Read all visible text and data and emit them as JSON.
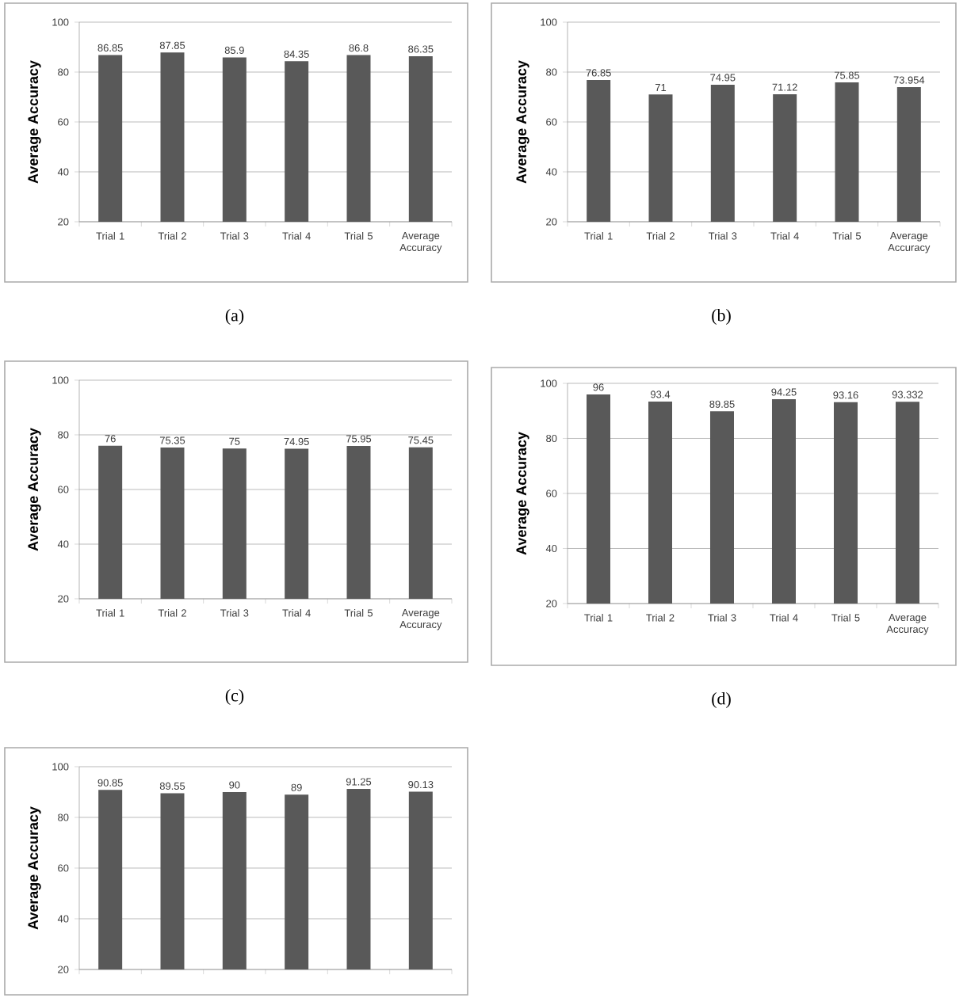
{
  "chart_data": [
    {
      "type": "bar",
      "categories": [
        "Trial 1",
        "Trial 2",
        "Trial 3",
        "Trial 4",
        "Trial 5",
        "Average Accuracy"
      ],
      "values": [
        86.85,
        87.85,
        85.9,
        84.35,
        86.8,
        86.35
      ],
      "color": "#595959",
      "ylabel": "Average Accuracy",
      "ylim": [
        20,
        100
      ],
      "yticks": [
        20,
        40,
        60,
        80,
        100
      ],
      "grid": "y",
      "data_labels": true,
      "annotations": [
        "(a)"
      ]
    },
    {
      "type": "bar",
      "categories": [
        "Trial 1",
        "Trial 2",
        "Trial 3",
        "Trial 4",
        "Trial 5",
        "Average Accuracy"
      ],
      "values": [
        76.85,
        71,
        74.95,
        71.12,
        75.85,
        73.954
      ],
      "color": "#595959",
      "ylabel": "Average Accuracy",
      "ylim": [
        20,
        100
      ],
      "yticks": [
        20,
        40,
        60,
        80,
        100
      ],
      "grid": "y",
      "data_labels": true,
      "annotations": [
        "(b)"
      ]
    },
    {
      "type": "bar",
      "categories": [
        "Trial 1",
        "Trial 2",
        "Trial 3",
        "Trial 4",
        "Trial 5",
        "Average Accuracy"
      ],
      "values": [
        76,
        75.35,
        75,
        74.95,
        75.95,
        75.45
      ],
      "color": "#595959",
      "ylabel": "Average Accuracy",
      "ylim": [
        20,
        100
      ],
      "yticks": [
        20,
        40,
        60,
        80,
        100
      ],
      "grid": "y",
      "data_labels": true,
      "annotations": [
        "(c)"
      ]
    },
    {
      "type": "bar",
      "categories": [
        "Trial 1",
        "Trial 2",
        "Trial 3",
        "Trial 4",
        "Trial 5",
        "Average Accuracy"
      ],
      "values": [
        96,
        93.4,
        89.85,
        94.25,
        93.16,
        93.332
      ],
      "color": "#595959",
      "ylabel": "Average Accuracy",
      "ylim": [
        20,
        100
      ],
      "yticks": [
        20,
        40,
        60,
        80,
        100
      ],
      "grid": "y",
      "data_labels": true,
      "annotations": [
        "(d)"
      ]
    },
    {
      "type": "bar",
      "categories": [
        null,
        null,
        null,
        null,
        null,
        null
      ],
      "values": [
        90.85,
        89.55,
        90,
        89,
        91.25,
        90.13
      ],
      "color": "#595959",
      "ylabel": "Average Accuracy",
      "ylim": [
        20,
        100
      ],
      "yticks": [
        20,
        40,
        60,
        80,
        100
      ],
      "grid": "y",
      "data_labels": true,
      "tick_labels": "y"
    }
  ]
}
